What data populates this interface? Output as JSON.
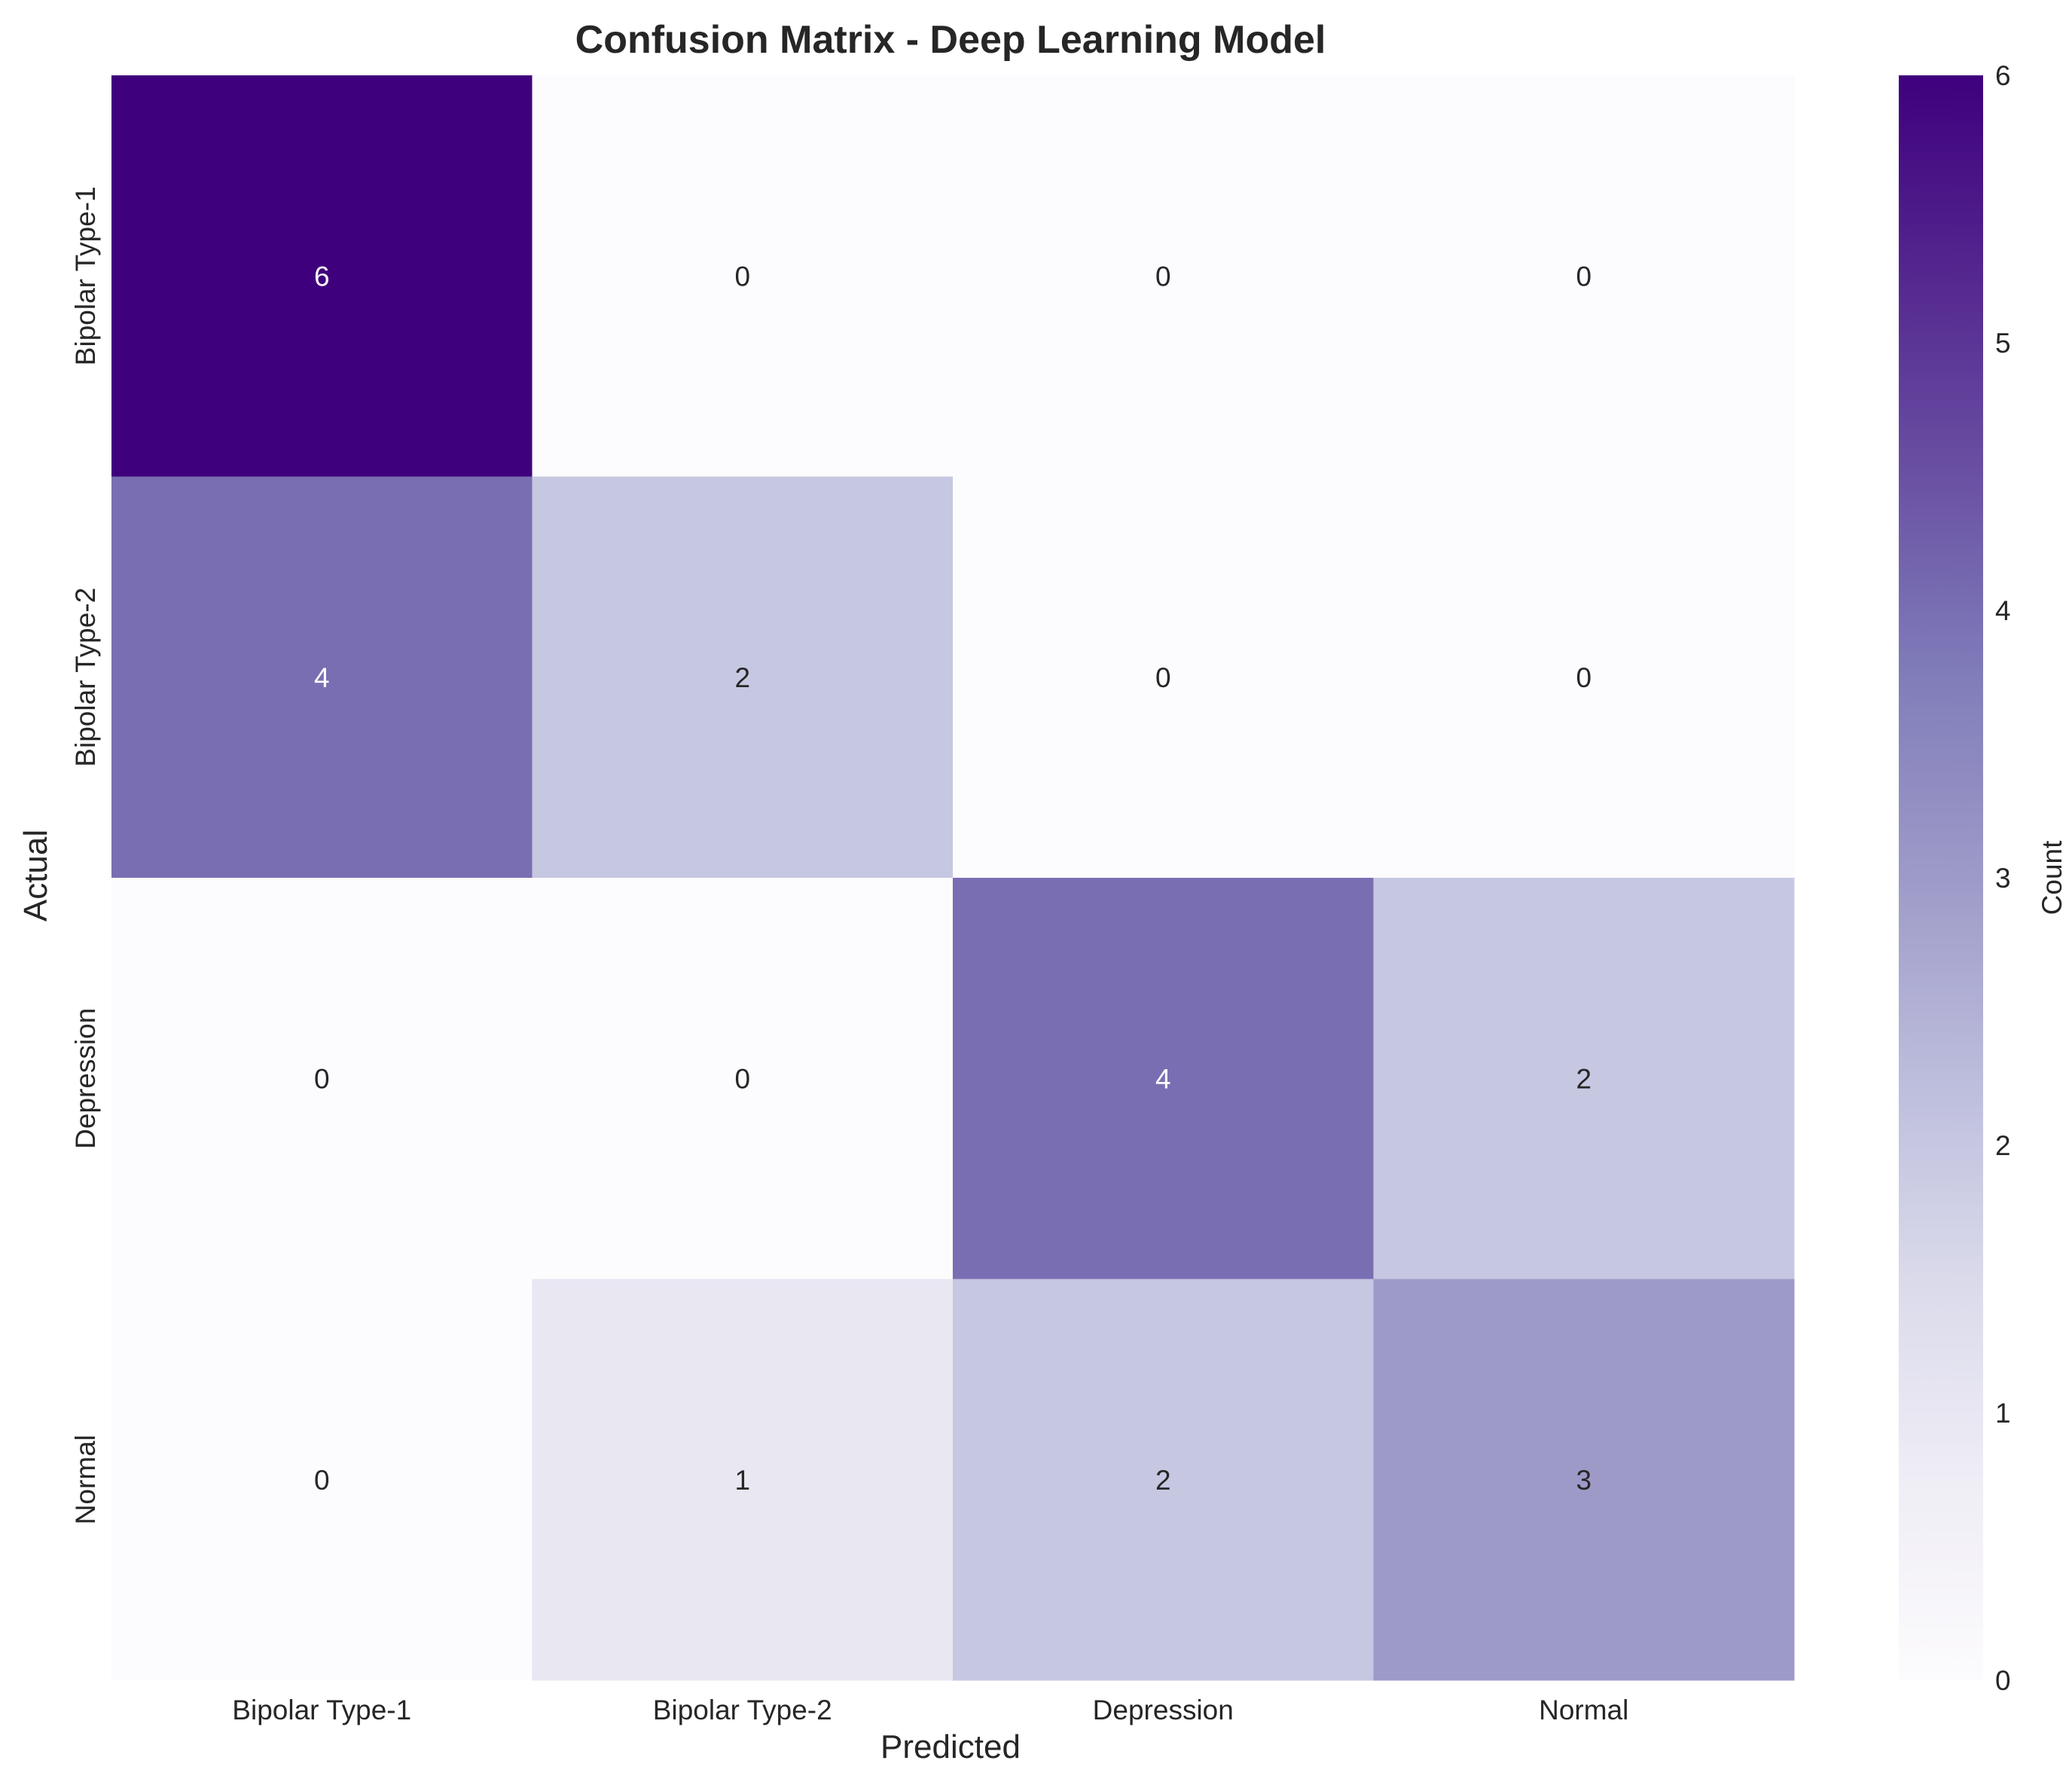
{
  "chart_data": {
    "type": "heatmap",
    "title": "Confusion Matrix - Deep Learning Model",
    "xlabel": "Predicted",
    "ylabel": "Actual",
    "x_categories": [
      "Bipolar Type-1",
      "Bipolar Type-2",
      "Depression",
      "Normal"
    ],
    "y_categories": [
      "Bipolar Type-1",
      "Bipolar Type-2",
      "Depression",
      "Normal"
    ],
    "values": [
      [
        6,
        0,
        0,
        0
      ],
      [
        4,
        2,
        0,
        0
      ],
      [
        0,
        0,
        4,
        2
      ],
      [
        0,
        1,
        2,
        3
      ]
    ],
    "colorbar": {
      "label": "Count",
      "range": [
        0,
        6
      ],
      "ticks": [
        0,
        1,
        2,
        3,
        4,
        5,
        6
      ],
      "colormap": "Purples",
      "low_color": "#fcfbfd",
      "high_color": "#3f007d"
    },
    "grid": false
  }
}
